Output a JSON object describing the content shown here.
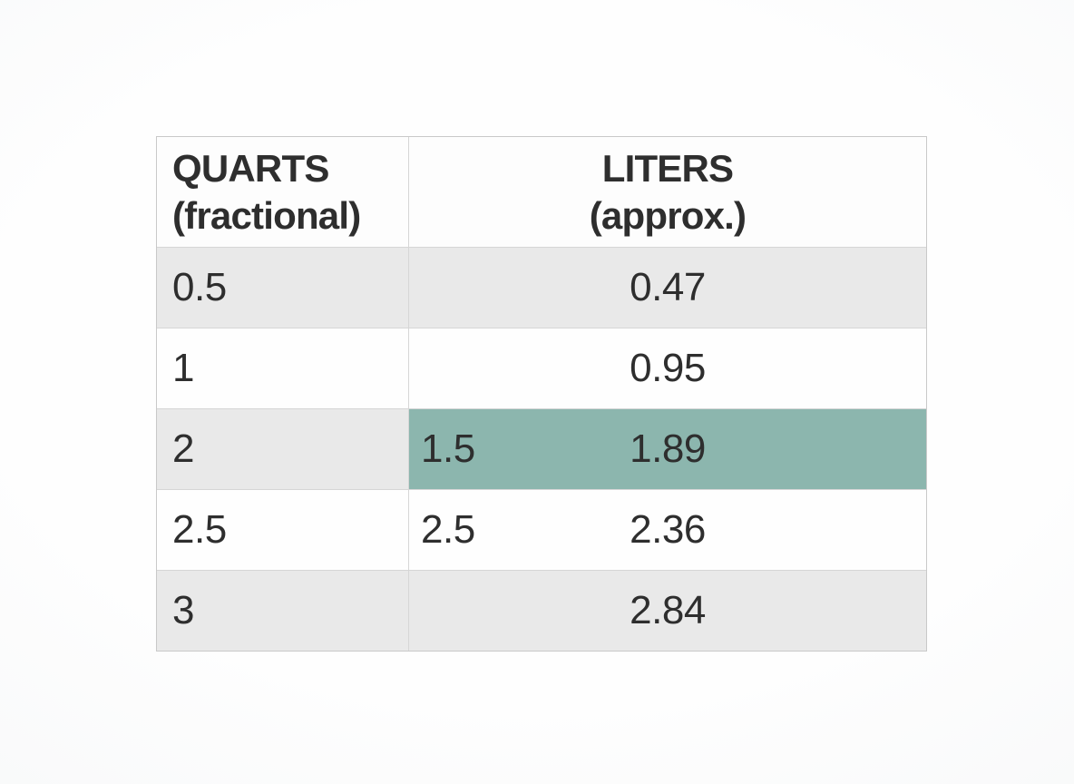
{
  "table": {
    "header": {
      "col1_line1": "QUARTS",
      "col1_line2": "(fractional)",
      "col2_line1": "LITERS",
      "col2_line2": "(approx.)"
    },
    "rows": [
      {
        "quarts": "0.5",
        "inline": "",
        "liters": "0.47"
      },
      {
        "quarts": "1",
        "inline": "",
        "liters": "0.95"
      },
      {
        "quarts": "2",
        "inline": "1.5",
        "liters": "1.89"
      },
      {
        "quarts": "2.5",
        "inline": "2.5",
        "liters": "2.36"
      },
      {
        "quarts": "3",
        "inline": "",
        "liters": "2.84"
      }
    ],
    "colors": {
      "shaded_row": "#e9e9e9",
      "plain_row": "#fefefe",
      "highlight": "#8cb6ae",
      "border": "#c9c9c9",
      "grid_line": "#d6d6d6",
      "text": "#2e2e2e"
    }
  },
  "chart_data": {
    "type": "table",
    "title": "",
    "columns": [
      "QUARTS (fractional)",
      "LITERS (approx.)"
    ],
    "rows": [
      [
        "0.5",
        "0.47"
      ],
      [
        "1",
        "0.95"
      ],
      [
        "2",
        "1.5 / 1.89"
      ],
      [
        "2.5",
        "2.5 / 2.36"
      ],
      [
        "3",
        "2.84"
      ]
    ],
    "highlight": "Liters cell of row '2' is shaded teal and holds two values: 1.5 (left-aligned) and 1.89 (centered); row '2.5' liters cell holds 2.5 (left-aligned) and 2.36 (centered). Rows 0.5, 2 and 3 have gray banding."
  }
}
